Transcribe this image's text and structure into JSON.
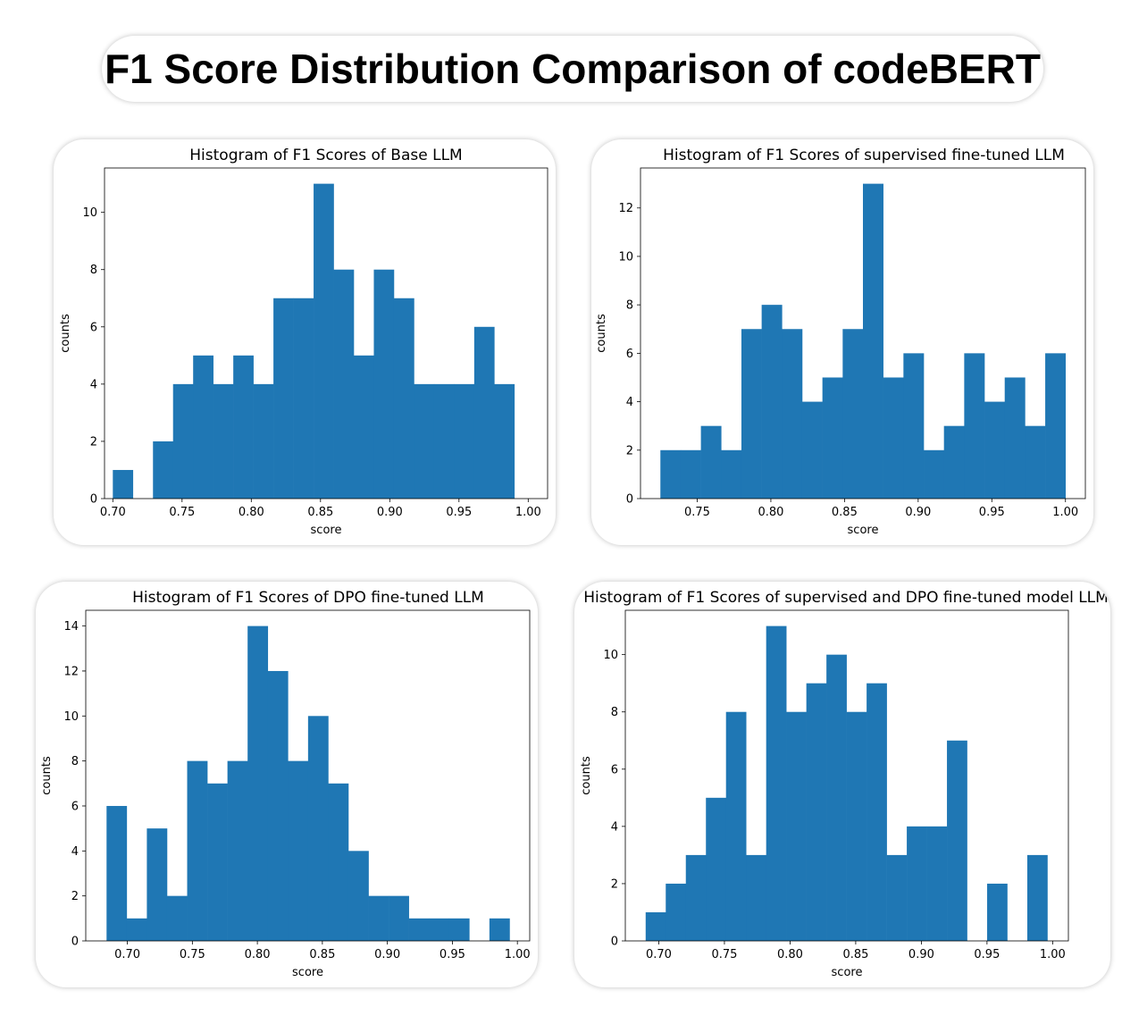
{
  "main_title": "F1 Score Distribution Comparison of codeBERT",
  "colors": {
    "bar": "#1f77b4",
    "axis": "#000000"
  },
  "chart_data": [
    {
      "type": "bar",
      "title": "Histogram of F1 Scores of Base LLM",
      "xlabel": "score",
      "ylabel": "counts",
      "xlim": [
        0.694,
        1.014
      ],
      "ylim": [
        0,
        11.55
      ],
      "bins_start": 0.7,
      "bin_width": 0.0145,
      "values": [
        1,
        0,
        2,
        4,
        5,
        4,
        5,
        4,
        7,
        7,
        11,
        8,
        5,
        8,
        7,
        4,
        4,
        4,
        6,
        4
      ],
      "xticks": [
        0.7,
        0.75,
        0.8,
        0.85,
        0.9,
        0.95,
        1.0
      ],
      "xtick_labels": [
        "0.70",
        "0.75",
        "0.80",
        "0.85",
        "0.90",
        "0.95",
        "1.00"
      ],
      "yticks": [
        0,
        2,
        4,
        6,
        8,
        10
      ],
      "ytick_labels": [
        "0",
        "2",
        "4",
        "6",
        "8",
        "10"
      ]
    },
    {
      "type": "bar",
      "title": "Histogram of F1 Scores of supervised fine-tuned LLM",
      "xlabel": "score",
      "ylabel": "counts",
      "xlim": [
        0.7115,
        1.0135
      ],
      "ylim": [
        0,
        13.65
      ],
      "bins_start": 0.725,
      "bin_width": 0.01375,
      "values": [
        2,
        2,
        3,
        2,
        7,
        8,
        7,
        4,
        5,
        7,
        13,
        5,
        6,
        2,
        3,
        6,
        4,
        5,
        3,
        6
      ],
      "xticks": [
        0.75,
        0.8,
        0.85,
        0.9,
        0.95,
        1.0
      ],
      "xtick_labels": [
        "0.75",
        "0.80",
        "0.85",
        "0.90",
        "0.95",
        "1.00"
      ],
      "yticks": [
        0,
        2,
        4,
        6,
        8,
        10,
        12
      ],
      "ytick_labels": [
        "0",
        "2",
        "4",
        "6",
        "8",
        "10",
        "12"
      ]
    },
    {
      "type": "bar",
      "title": "Histogram of F1 Scores of DPO fine-tuned LLM",
      "xlabel": "score",
      "ylabel": "counts",
      "xlim": [
        0.668,
        1.0095
      ],
      "ylim": [
        0,
        14.7
      ],
      "bins_start": 0.684,
      "bin_width": 0.0155,
      "values": [
        6,
        1,
        5,
        2,
        8,
        7,
        8,
        14,
        12,
        8,
        10,
        7,
        4,
        2,
        2,
        1,
        1,
        1,
        0,
        1
      ],
      "xticks": [
        0.7,
        0.75,
        0.8,
        0.85,
        0.9,
        0.95,
        1.0
      ],
      "xtick_labels": [
        "0.70",
        "0.75",
        "0.80",
        "0.85",
        "0.90",
        "0.95",
        "1.00"
      ],
      "yticks": [
        0,
        2,
        4,
        6,
        8,
        10,
        12,
        14
      ],
      "ytick_labels": [
        "0",
        "2",
        "4",
        "6",
        "8",
        "10",
        "12",
        "14"
      ]
    },
    {
      "type": "bar",
      "title": "Histogram of F1 Scores of supervised and DPO fine-tuned model LLM",
      "xlabel": "score",
      "ylabel": "counts",
      "xlim": [
        0.6745,
        1.012
      ],
      "ylim": [
        0,
        11.55
      ],
      "bins_start": 0.69,
      "bin_width": 0.0153,
      "values": [
        1,
        2,
        3,
        5,
        8,
        3,
        11,
        8,
        9,
        10,
        8,
        9,
        3,
        4,
        4,
        7,
        0,
        2,
        0,
        3
      ],
      "xticks": [
        0.7,
        0.75,
        0.8,
        0.85,
        0.9,
        0.95,
        1.0
      ],
      "xtick_labels": [
        "0.70",
        "0.75",
        "0.80",
        "0.85",
        "0.90",
        "0.95",
        "1.00"
      ],
      "yticks": [
        0,
        2,
        4,
        6,
        8,
        10
      ],
      "ytick_labels": [
        "0",
        "2",
        "4",
        "6",
        "8",
        "10"
      ]
    }
  ]
}
